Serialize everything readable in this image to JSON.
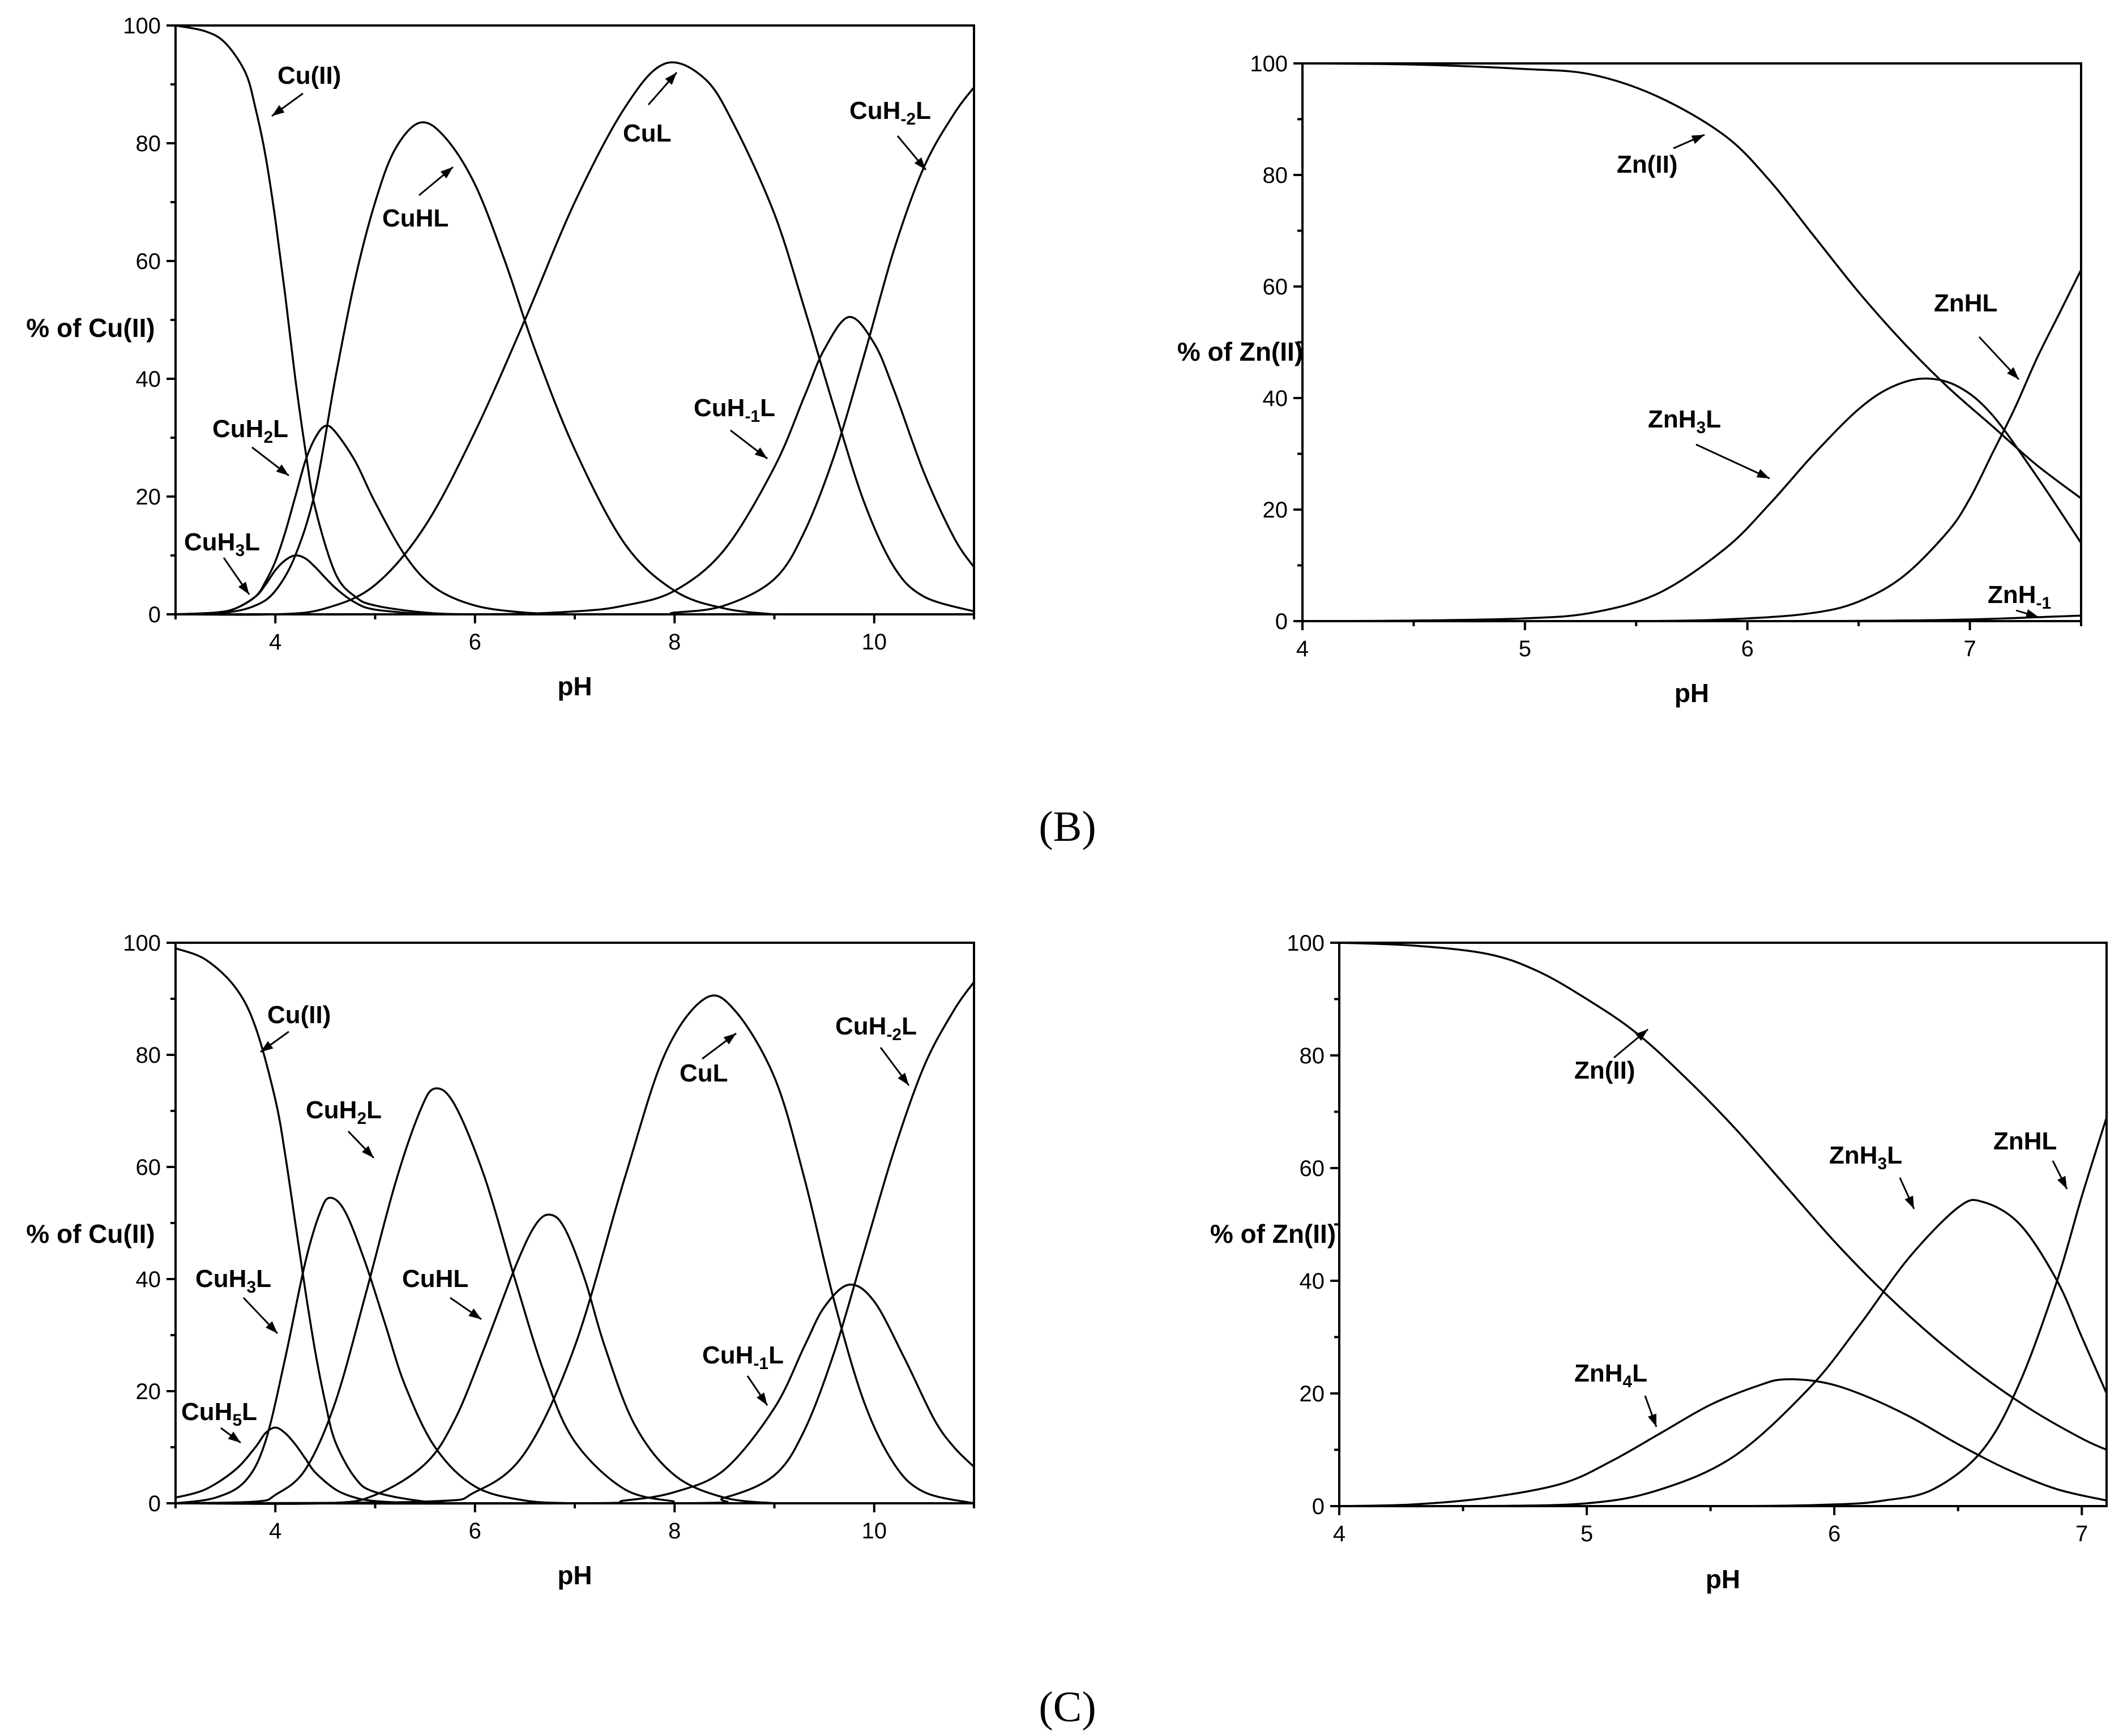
{
  "panel_letters": [
    "(B)",
    "(C)"
  ],
  "colors": {
    "line": "#000000",
    "background": "#ffffff"
  },
  "chart_data": [
    {
      "type": "line",
      "xlabel": "pH",
      "ylabel": "% of Cu(II)",
      "xlim": [
        3,
        11
      ],
      "ylim": [
        0,
        100
      ],
      "xticks": [
        4,
        6,
        8,
        10
      ],
      "yticks": [
        0,
        20,
        40,
        60,
        80,
        100
      ],
      "curves": [
        {
          "label": "Cu(II)",
          "sub": "",
          "suffix": "",
          "x": [
            3,
            3.3,
            3.5,
            3.7,
            3.8,
            3.9,
            4.0,
            4.1,
            4.2,
            4.3,
            4.4,
            4.6,
            4.8,
            5.0,
            5.5,
            6.0,
            7.0
          ],
          "y": [
            100,
            99,
            97,
            92,
            86,
            78,
            67,
            54,
            40,
            28,
            18,
            7,
            3,
            1.5,
            0.3,
            0,
            0
          ]
        },
        {
          "label": "CuH",
          "sub": "3",
          "suffix": "L",
          "x": [
            3,
            3.4,
            3.6,
            3.8,
            3.9,
            4.0,
            4.1,
            4.2,
            4.3,
            4.4,
            4.6,
            4.8,
            5.0,
            5.5
          ],
          "y": [
            0,
            0.3,
            1,
            3,
            5,
            7.5,
            9.2,
            10,
            9.5,
            8,
            4.5,
            2,
            0.8,
            0
          ]
        },
        {
          "label": "CuH",
          "sub": "2",
          "suffix": "L",
          "x": [
            3,
            3.4,
            3.6,
            3.8,
            3.9,
            4.0,
            4.1,
            4.2,
            4.3,
            4.4,
            4.5,
            4.6,
            4.8,
            5.0,
            5.3,
            5.6,
            6.0,
            6.5,
            7.0
          ],
          "y": [
            0,
            0.3,
            1,
            3,
            5.5,
            9,
            14,
            20,
            26,
            30,
            32,
            31,
            26,
            19,
            10,
            4.5,
            1.5,
            0.3,
            0
          ]
        },
        {
          "label": "CuHL",
          "sub": "",
          "suffix": "",
          "x": [
            3,
            3.5,
            3.8,
            4.0,
            4.2,
            4.4,
            4.6,
            4.8,
            5.0,
            5.2,
            5.45,
            5.7,
            6.0,
            6.3,
            6.6,
            7.0,
            7.5,
            8.0,
            8.5,
            9.0
          ],
          "y": [
            0,
            0.3,
            1.5,
            4,
            10,
            21,
            40,
            57,
            70,
            79,
            83.5,
            81,
            73,
            60,
            45,
            28,
            12,
            4,
            1,
            0
          ]
        },
        {
          "label": "CuL",
          "sub": "",
          "suffix": "",
          "x": [
            3,
            4.0,
            4.5,
            5.0,
            5.5,
            6.0,
            6.5,
            7.0,
            7.5,
            7.9,
            8.3,
            8.6,
            9.0,
            9.3,
            9.6,
            9.9,
            10.2,
            10.5,
            11.0
          ],
          "y": [
            0,
            0,
            1,
            5,
            15,
            31,
            50,
            70,
            86,
            93.5,
            91,
            83,
            68,
            52,
            35,
            19,
            8,
            3,
            0.5
          ]
        },
        {
          "label": "CuH",
          "sub": "-1",
          "suffix": "L",
          "x": [
            3,
            6.0,
            7.0,
            7.5,
            8.0,
            8.5,
            9.0,
            9.3,
            9.5,
            9.75,
            10.0,
            10.2,
            10.5,
            10.8,
            11.0
          ],
          "y": [
            0,
            0,
            0.5,
            1.5,
            4,
            11,
            25,
            37,
            45,
            50.5,
            46,
            38,
            24,
            13,
            8
          ]
        },
        {
          "label": "CuH",
          "sub": "-2",
          "suffix": "L",
          "x": [
            3,
            7.5,
            8.0,
            8.5,
            9.0,
            9.3,
            9.6,
            9.9,
            10.2,
            10.5,
            10.8,
            11.0
          ],
          "y": [
            0,
            0,
            0.3,
            1.5,
            6,
            14,
            27,
            44,
            62,
            76,
            85,
            89.5
          ]
        }
      ]
    },
    {
      "type": "line",
      "xlabel": "pH",
      "ylabel": "% of Zn(II)",
      "xlim": [
        4,
        7.5
      ],
      "ylim": [
        0,
        100
      ],
      "xticks": [
        4,
        5,
        6,
        7
      ],
      "yticks": [
        0,
        20,
        40,
        60,
        80,
        100
      ],
      "curves": [
        {
          "label": "Zn(II)",
          "sub": "",
          "suffix": "",
          "x": [
            4,
            4.5,
            5.0,
            5.3,
            5.6,
            5.9,
            6.1,
            6.3,
            6.5,
            6.7,
            6.9,
            7.1,
            7.3,
            7.5
          ],
          "y": [
            100,
            99.8,
            99,
            98,
            94,
            87,
            79,
            69,
            59,
            50,
            42,
            35,
            28,
            22
          ]
        },
        {
          "label": "ZnH",
          "sub": "3",
          "suffix": "L",
          "x": [
            4,
            4.5,
            5.0,
            5.3,
            5.6,
            5.9,
            6.1,
            6.3,
            6.5,
            6.65,
            6.8,
            6.95,
            7.1,
            7.3,
            7.5
          ],
          "y": [
            0,
            0.1,
            0.5,
            1.5,
            5,
            13,
            21,
            30,
            38,
            42,
            43.5,
            42,
            37,
            26,
            14
          ]
        },
        {
          "label": "ZnHL",
          "sub": "",
          "suffix": "",
          "x": [
            4,
            5.5,
            6.0,
            6.3,
            6.5,
            6.7,
            6.9,
            7.0,
            7.1,
            7.2,
            7.3,
            7.4,
            7.5
          ],
          "y": [
            0,
            0,
            0.5,
            1.5,
            3.5,
            8,
            16,
            22,
            30,
            38,
            47,
            55,
            63
          ]
        },
        {
          "label": "ZnH",
          "sub": "-1",
          "suffix": "",
          "x": [
            4,
            6.0,
            6.5,
            7.0,
            7.5
          ],
          "y": [
            0,
            0,
            0.05,
            0.3,
            1.0
          ]
        }
      ]
    },
    {
      "type": "line",
      "xlabel": "pH",
      "ylabel": "% of Cu(II)",
      "xlim": [
        3,
        11
      ],
      "ylim": [
        0,
        100
      ],
      "xticks": [
        4,
        6,
        8,
        10
      ],
      "yticks": [
        0,
        20,
        40,
        60,
        80,
        100
      ],
      "curves": [
        {
          "label": "Cu(II)",
          "sub": "",
          "suffix": "",
          "x": [
            3,
            3.3,
            3.6,
            3.8,
            4.0,
            4.1,
            4.2,
            4.3,
            4.4,
            4.5,
            4.6,
            4.8,
            5.0,
            5.5,
            6.0,
            7.0
          ],
          "y": [
            99,
            97,
            92,
            85,
            72,
            62,
            50,
            38,
            27,
            18,
            11,
            4.5,
            2,
            0.3,
            0,
            0
          ]
        },
        {
          "label": "CuH",
          "sub": "5",
          "suffix": "L",
          "x": [
            3,
            3.3,
            3.6,
            3.8,
            3.9,
            4.0,
            4.1,
            4.2,
            4.3,
            4.4,
            4.6,
            4.8,
            5.0,
            5.3,
            5.6
          ],
          "y": [
            1,
            2.5,
            6,
            10,
            12.5,
            13.5,
            12.5,
            10.5,
            8,
            5.5,
            2.5,
            1,
            0.4,
            0.1,
            0
          ]
        },
        {
          "label": "CuH",
          "sub": "3",
          "suffix": "L",
          "x": [
            3,
            3.4,
            3.7,
            3.9,
            4.1,
            4.3,
            4.45,
            4.55,
            4.7,
            4.9,
            5.1,
            5.3,
            5.6,
            6.0,
            6.5,
            7.0
          ],
          "y": [
            0,
            1,
            4,
            11,
            26,
            43,
            52,
            54.5,
            52,
            43,
            32,
            21,
            10,
            3,
            0.5,
            0
          ]
        },
        {
          "label": "CuH",
          "sub": "2",
          "suffix": "L",
          "x": [
            3,
            3.8,
            4.0,
            4.3,
            4.6,
            4.9,
            5.2,
            5.45,
            5.6,
            5.8,
            6.1,
            6.4,
            6.7,
            7.0,
            7.5,
            8.0
          ],
          "y": [
            0,
            0.3,
            1.5,
            6,
            18,
            37,
            57,
            70,
            74,
            71,
            58,
            40,
            23,
            11,
            2.5,
            0.3
          ]
        },
        {
          "label": "CuHL",
          "sub": "",
          "suffix": "",
          "x": [
            3,
            4.5,
            5.0,
            5.5,
            5.8,
            6.1,
            6.4,
            6.6,
            6.75,
            6.9,
            7.1,
            7.3,
            7.6,
            8.0,
            8.5,
            9.0
          ],
          "y": [
            0,
            0,
            1.5,
            7,
            15,
            28,
            42,
            49.5,
            51.5,
            49,
            40,
            28,
            14,
            5,
            1,
            0
          ]
        },
        {
          "label": "CuL",
          "sub": "",
          "suffix": "",
          "x": [
            3,
            5.5,
            6.0,
            6.5,
            7.0,
            7.5,
            7.9,
            8.3,
            8.6,
            9.0,
            9.3,
            9.6,
            9.9,
            10.2,
            10.5,
            11.0
          ],
          "y": [
            0,
            0.3,
            2,
            9,
            28,
            58,
            80,
            90,
            88,
            76,
            58,
            36,
            18,
            7,
            2,
            0
          ]
        },
        {
          "label": "CuH",
          "sub": "-1",
          "suffix": "L",
          "x": [
            3,
            7.0,
            7.5,
            8.0,
            8.5,
            9.0,
            9.3,
            9.5,
            9.75,
            10.0,
            10.3,
            10.6,
            10.8,
            11.0
          ],
          "y": [
            0,
            0,
            0.5,
            2,
            6,
            17,
            28,
            35,
            39,
            36,
            26,
            15,
            10,
            6.5
          ]
        },
        {
          "label": "CuH",
          "sub": "-2",
          "suffix": "L",
          "x": [
            3,
            8.0,
            8.5,
            9.0,
            9.3,
            9.6,
            9.9,
            10.2,
            10.5,
            10.8,
            11.0
          ],
          "y": [
            0,
            0,
            1,
            5,
            13,
            27,
            45,
            63,
            78,
            88,
            93
          ]
        }
      ]
    },
    {
      "type": "line",
      "xlabel": "pH",
      "ylabel": "% of Zn(II)",
      "xlim": [
        4,
        7.1
      ],
      "ylim": [
        0,
        100
      ],
      "xticks": [
        4,
        5,
        6,
        7
      ],
      "yticks": [
        0,
        20,
        40,
        60,
        80,
        100
      ],
      "curves": [
        {
          "label": "Zn(II)",
          "sub": "",
          "suffix": "",
          "x": [
            4,
            4.3,
            4.6,
            4.8,
            5.0,
            5.2,
            5.4,
            5.6,
            5.8,
            6.0,
            6.2,
            6.4,
            6.6,
            6.8,
            7.0,
            7.1
          ],
          "y": [
            100,
            99.5,
            98,
            95,
            90,
            84,
            76,
            67,
            57,
            47,
            38,
            30,
            23,
            17,
            12,
            10
          ]
        },
        {
          "label": "ZnH",
          "sub": "4",
          "suffix": "L",
          "x": [
            4,
            4.3,
            4.6,
            4.9,
            5.1,
            5.3,
            5.5,
            5.7,
            5.8,
            5.95,
            6.1,
            6.3,
            6.5,
            6.7,
            6.9,
            7.1
          ],
          "y": [
            0,
            0.3,
            1.5,
            4,
            8,
            13,
            18,
            21.5,
            22.5,
            22,
            20,
            16,
            11,
            6.5,
            3,
            1
          ]
        },
        {
          "label": "ZnH",
          "sub": "3",
          "suffix": "L",
          "x": [
            4,
            4.5,
            5.0,
            5.3,
            5.6,
            5.9,
            6.1,
            6.3,
            6.5,
            6.6,
            6.75,
            6.9,
            7.0,
            7.1
          ],
          "y": [
            0,
            0,
            0.5,
            3,
            9,
            21,
            32,
            44,
            53,
            54,
            50,
            40,
            30,
            20
          ]
        },
        {
          "label": "ZnHL",
          "sub": "",
          "suffix": "",
          "x": [
            4,
            5.5,
            6.0,
            6.2,
            6.4,
            6.6,
            6.75,
            6.9,
            7.0,
            7.1
          ],
          "y": [
            0,
            0,
            0.3,
            1,
            3,
            10,
            22,
            40,
            55,
            69
          ]
        }
      ]
    }
  ]
}
